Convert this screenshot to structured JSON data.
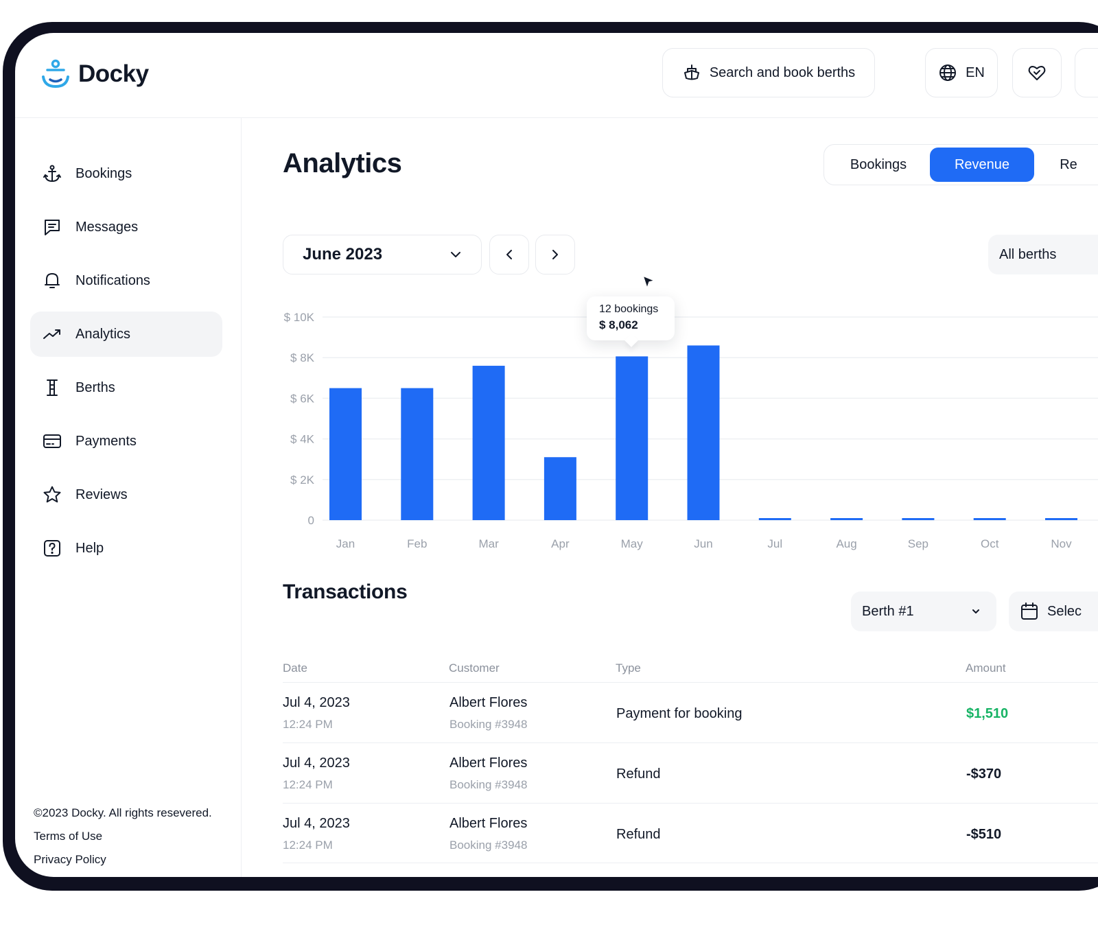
{
  "app": {
    "name": "Docky"
  },
  "header": {
    "search_label": "Search and book berths",
    "language": "EN"
  },
  "sidebar": {
    "items": [
      {
        "label": "Bookings",
        "icon": "anchor-icon"
      },
      {
        "label": "Messages",
        "icon": "message-icon"
      },
      {
        "label": "Notifications",
        "icon": "bell-icon"
      },
      {
        "label": "Analytics",
        "icon": "trending-up-icon",
        "active": true
      },
      {
        "label": "Berths",
        "icon": "berth-icon"
      },
      {
        "label": "Payments",
        "icon": "card-icon"
      },
      {
        "label": "Reviews",
        "icon": "star-icon"
      },
      {
        "label": "Help",
        "icon": "help-icon"
      }
    ],
    "footer": {
      "copyright": "©2023 Docky. All rights resevered.",
      "terms": "Terms of Use",
      "privacy": "Privacy Policy"
    }
  },
  "main": {
    "title": "Analytics",
    "tabs": [
      {
        "label": "Bookings",
        "active": false
      },
      {
        "label": "Revenue",
        "active": true
      },
      {
        "label": "Re",
        "active": false
      }
    ],
    "month_select": "June 2023",
    "berth_filter": "All berths",
    "tooltip": {
      "bookings": "12 bookings",
      "amount": "$ 8,062"
    }
  },
  "chart_data": {
    "type": "bar",
    "categories": [
      "Jan",
      "Feb",
      "Mar",
      "Apr",
      "May",
      "Jun",
      "Jul",
      "Aug",
      "Sep",
      "Oct",
      "Nov"
    ],
    "values": [
      6500,
      6500,
      7600,
      3100,
      8062,
      8600,
      0,
      0,
      0,
      0,
      0
    ],
    "y_ticks": [
      "0",
      "$ 2K",
      "$ 4K",
      "$ 6K",
      "$ 8K",
      "$ 10K"
    ],
    "ylim": [
      0,
      10000
    ],
    "grid": true,
    "bar_color": "#1f6bf5"
  },
  "transactions": {
    "title": "Transactions",
    "berth_select": "Berth #1",
    "date_select": "Selec",
    "columns": [
      "Date",
      "Customer",
      "Type",
      "Amount"
    ],
    "rows": [
      {
        "date": "Jul 4, 2023",
        "time": "12:24 PM",
        "customer": "Albert Flores",
        "booking": "Booking #3948",
        "type": "Payment for booking",
        "amount": "$1,510",
        "positive": true
      },
      {
        "date": "Jul 4, 2023",
        "time": "12:24 PM",
        "customer": "Albert Flores",
        "booking": "Booking #3948",
        "type": "Refund",
        "amount": "-$370",
        "positive": false
      },
      {
        "date": "Jul 4, 2023",
        "time": "12:24 PM",
        "customer": "Albert Flores",
        "booking": "Booking #3948",
        "type": "Refund",
        "amount": "-$510",
        "positive": false
      }
    ]
  },
  "colors": {
    "accent": "#1f6bf5",
    "positive": "#16b364",
    "logo": "#2fa8e8"
  }
}
